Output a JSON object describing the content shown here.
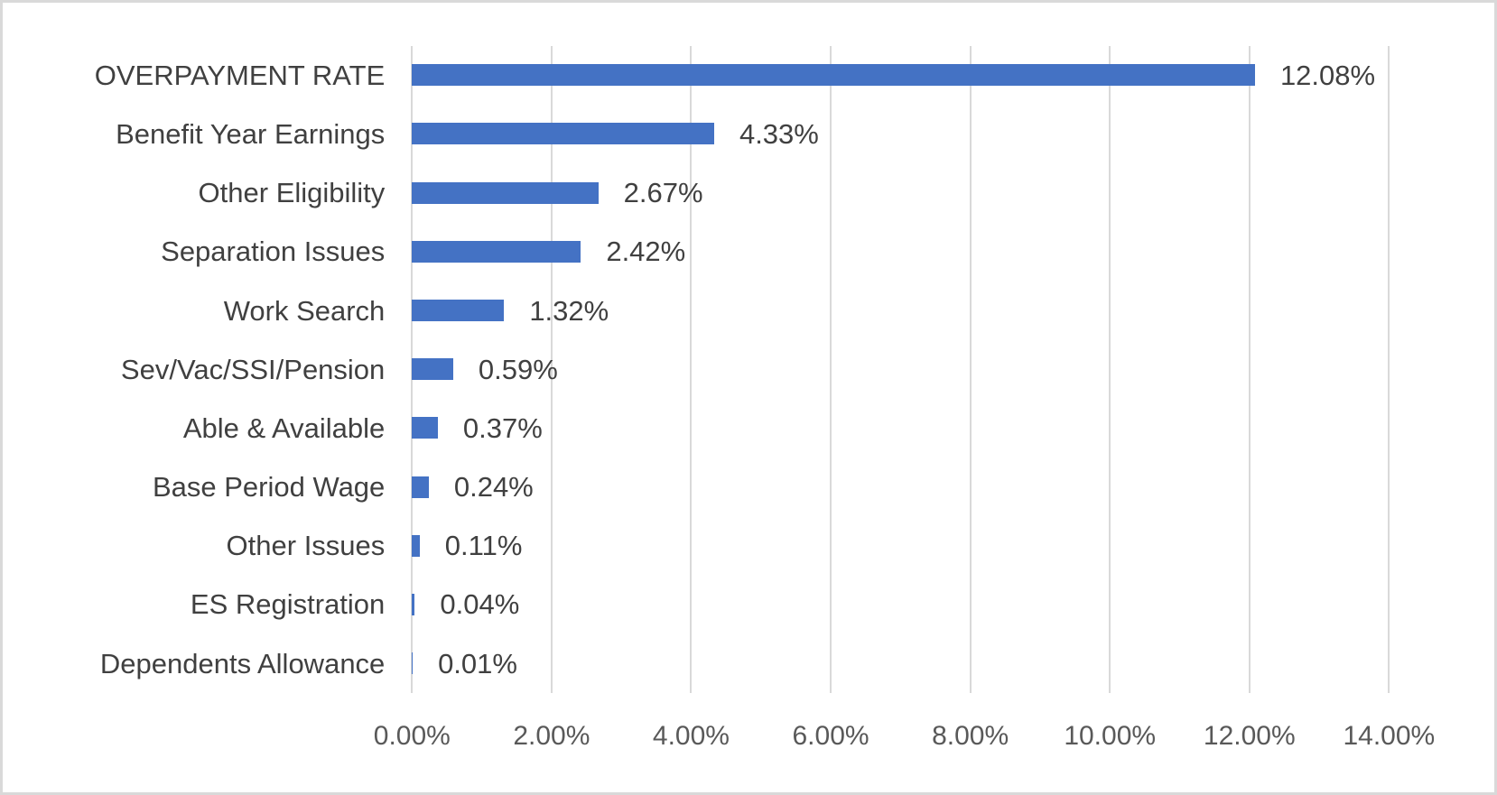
{
  "chart_data": {
    "type": "bar",
    "orientation": "horizontal",
    "title": "",
    "xlabel": "",
    "ylabel": "",
    "categories": [
      "OVERPAYMENT RATE",
      "Benefit Year Earnings",
      "Other Eligibility",
      "Separation Issues",
      "Work Search",
      "Sev/Vac/SSI/Pension",
      "Able & Available",
      "Base Period Wage",
      "Other Issues",
      "ES Registration",
      "Dependents Allowance"
    ],
    "values": [
      12.08,
      4.33,
      2.67,
      2.42,
      1.32,
      0.59,
      0.37,
      0.24,
      0.11,
      0.04,
      0.01
    ],
    "data_labels": [
      "12.08%",
      "4.33%",
      "2.67%",
      "2.42%",
      "1.32%",
      "0.59%",
      "0.37%",
      "0.24%",
      "0.11%",
      "0.04%",
      "0.01%"
    ],
    "xlim": [
      0,
      14
    ],
    "x_ticks": [
      0,
      2,
      4,
      6,
      8,
      10,
      12,
      14
    ],
    "x_tick_labels": [
      "0.00%",
      "2.00%",
      "4.00%",
      "6.00%",
      "8.00%",
      "10.00%",
      "12.00%",
      "14.00%"
    ],
    "grid": "vertical-only",
    "legend": "none",
    "colors": {
      "bar": "#4472C4",
      "data_label_text": "#404040",
      "category_text": "#404040",
      "tick_text": "#595959",
      "gridline": "#D9D9D9",
      "frame_border": "#D9D9D9",
      "background": "#FFFFFF"
    }
  }
}
